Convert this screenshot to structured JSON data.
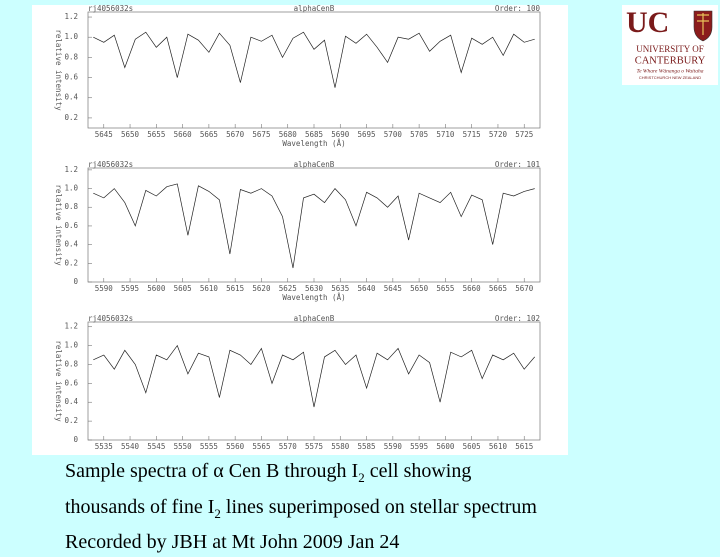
{
  "chart_data": [
    {
      "type": "line",
      "header_left": "rj4056032s",
      "title": "alphaCenB",
      "header_right": "Order: 100",
      "xlabel": "Wavelength (Å)",
      "ylabel": "relative intensity",
      "color": "#222222",
      "x": [
        5643,
        5645,
        5647,
        5649,
        5651,
        5653,
        5655,
        5657,
        5659,
        5661,
        5663,
        5665,
        5667,
        5669,
        5671,
        5673,
        5675,
        5677,
        5679,
        5681,
        5683,
        5685,
        5687,
        5689,
        5691,
        5693,
        5695,
        5697,
        5699,
        5701,
        5703,
        5705,
        5707,
        5709,
        5711,
        5713,
        5715,
        5717,
        5719,
        5721,
        5723,
        5725,
        5727
      ],
      "values": [
        1.0,
        0.95,
        1.02,
        0.7,
        0.98,
        1.05,
        0.9,
        1.0,
        0.6,
        1.03,
        0.97,
        0.85,
        1.04,
        0.92,
        0.55,
        1.0,
        0.96,
        1.02,
        0.8,
        0.99,
        1.05,
        0.88,
        0.97,
        0.5,
        1.01,
        0.94,
        1.03,
        0.9,
        0.75,
        1.0,
        0.98,
        1.04,
        0.86,
        0.96,
        1.02,
        0.65,
        0.99,
        0.93,
        1.0,
        0.82,
        1.03,
        0.95,
        0.98
      ],
      "xlim": [
        5642,
        5728
      ],
      "xticks": [
        5645,
        5650,
        5655,
        5660,
        5665,
        5670,
        5675,
        5680,
        5685,
        5690,
        5695,
        5700,
        5705,
        5710,
        5715,
        5720,
        5725
      ],
      "ylim": [
        0.1,
        1.25
      ],
      "yticks": [
        0.2,
        0.4,
        0.6,
        0.8,
        {
          "value": 1,
          "label": "1.0"
        },
        1.2
      ]
    },
    {
      "type": "line",
      "header_left": "rj4056032s",
      "title": "alphaCenB",
      "header_right": "Order: 101",
      "xlabel": "Wavelength (Å)",
      "ylabel": "relative intensity",
      "color": "#222222",
      "x": [
        5588,
        5590,
        5592,
        5594,
        5596,
        5598,
        5600,
        5602,
        5604,
        5606,
        5608,
        5610,
        5612,
        5614,
        5616,
        5618,
        5620,
        5622,
        5624,
        5626,
        5628,
        5630,
        5632,
        5634,
        5636,
        5638,
        5640,
        5642,
        5644,
        5646,
        5648,
        5650,
        5652,
        5654,
        5656,
        5658,
        5660,
        5662,
        5664,
        5666,
        5668,
        5670,
        5672
      ],
      "values": [
        0.95,
        0.9,
        1.0,
        0.85,
        0.6,
        0.98,
        0.92,
        1.02,
        1.05,
        0.5,
        1.03,
        0.97,
        0.88,
        0.3,
        0.99,
        0.95,
        1.0,
        0.92,
        0.7,
        0.15,
        0.9,
        0.94,
        0.85,
        1.0,
        0.88,
        0.6,
        0.96,
        0.9,
        0.8,
        0.92,
        0.45,
        0.95,
        0.9,
        0.85,
        0.96,
        0.7,
        0.93,
        0.88,
        0.4,
        0.95,
        0.92,
        0.97,
        1.0
      ],
      "xlim": [
        5587,
        5673
      ],
      "xticks": [
        5590,
        5595,
        5600,
        5605,
        5610,
        5615,
        5620,
        5625,
        5630,
        5635,
        5640,
        5645,
        5650,
        5655,
        5660,
        5665,
        5670
      ],
      "ylim": [
        0,
        1.22
      ],
      "yticks": [
        0,
        0.2,
        0.4,
        0.6,
        0.8,
        {
          "value": 1,
          "label": "1.0"
        },
        1.2
      ]
    },
    {
      "type": "line",
      "header_left": "rj4056032s",
      "title": "alphaCenB",
      "header_right": "Order: 102",
      "ylabel": "relative intensity",
      "color": "#222222",
      "x": [
        5533,
        5535,
        5537,
        5539,
        5541,
        5543,
        5545,
        5547,
        5549,
        5551,
        5553,
        5555,
        5557,
        5559,
        5561,
        5563,
        5565,
        5567,
        5569,
        5571,
        5573,
        5575,
        5577,
        5579,
        5581,
        5583,
        5585,
        5587,
        5589,
        5591,
        5593,
        5595,
        5597,
        5599,
        5601,
        5603,
        5605,
        5607,
        5609,
        5611,
        5613,
        5615,
        5617
      ],
      "values": [
        0.85,
        0.9,
        0.75,
        0.95,
        0.8,
        0.5,
        0.9,
        0.85,
        1.0,
        0.7,
        0.92,
        0.88,
        0.45,
        0.95,
        0.9,
        0.8,
        0.97,
        0.6,
        0.9,
        0.85,
        0.93,
        0.35,
        0.88,
        0.95,
        0.8,
        0.9,
        0.55,
        0.92,
        0.85,
        0.97,
        0.7,
        0.9,
        0.82,
        0.4,
        0.93,
        0.88,
        0.95,
        0.65,
        0.9,
        0.85,
        0.92,
        0.75,
        0.88
      ],
      "xlim": [
        5532,
        5618
      ],
      "xticks": [
        5535,
        5540,
        5545,
        5550,
        5555,
        5560,
        5565,
        5570,
        5575,
        5580,
        5585,
        5590,
        5595,
        5600,
        5605,
        5610,
        5615
      ],
      "ylim": [
        0,
        1.25
      ],
      "yticks": [
        0,
        0.2,
        0.4,
        0.6,
        0.8,
        {
          "value": 1,
          "label": "1.0"
        },
        1.2
      ]
    }
  ],
  "logo": {
    "mark": "UC",
    "name_1": "UNIVERSITY OF",
    "name_2": "CANTERBURY",
    "maori": "Te Whare Wānanga o Waitaha",
    "city": "CHRISTCHURCH NEW ZEALAND"
  },
  "caption": [
    [
      "Sample spectra of α Cen B through I",
      "2",
      " cell showing"
    ],
    [
      "thousands of fine I",
      "2",
      " lines superimposed on stellar spectrum"
    ],
    [
      "Recorded by JBH at Mt John 2009 Jan 24"
    ]
  ]
}
